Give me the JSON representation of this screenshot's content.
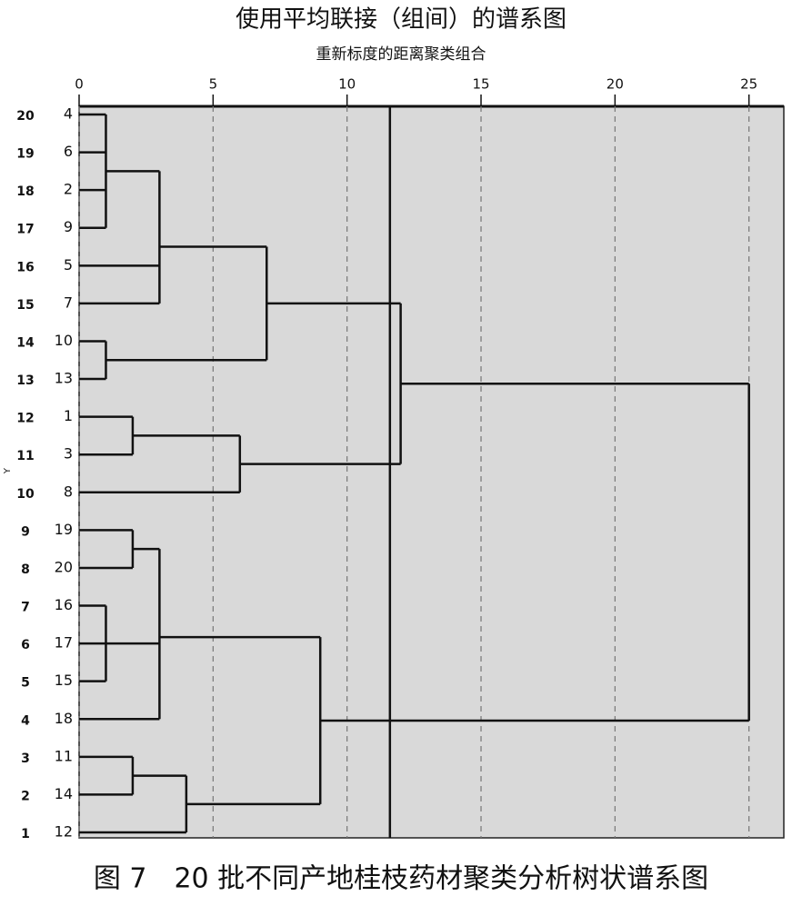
{
  "chart_data": {
    "type": "dendrogram",
    "title": "使用平均联接（组间）的谱系图",
    "subtitle": "重新标度的距离聚类组合",
    "y_label": "Y",
    "caption": "图 7　20 批不同产地桂枝药材聚类分析树状谱系图",
    "xlim": [
      0,
      26.3
    ],
    "xticks": [
      0,
      5,
      10,
      15,
      20,
      25
    ],
    "grid": true,
    "cut_line": 11.6,
    "tree": {
      "height": 25,
      "children": [
        {
          "height": 12,
          "children": [
            {
              "height": 7,
              "children": [
                {
                  "height": 3,
                  "children": [
                    {
                      "height": 1,
                      "children": [
                        {
                          "row": 20,
                          "label": 4
                        },
                        {
                          "row": 19,
                          "label": 6
                        },
                        {
                          "row": 18,
                          "label": 2
                        },
                        {
                          "row": 17,
                          "label": 9
                        }
                      ]
                    },
                    {
                      "row": 16,
                      "label": 5
                    },
                    {
                      "row": 15,
                      "label": 7
                    }
                  ]
                },
                {
                  "height": 1,
                  "children": [
                    {
                      "row": 14,
                      "label": 10
                    },
                    {
                      "row": 13,
                      "label": 13
                    }
                  ]
                }
              ]
            },
            {
              "height": 6,
              "children": [
                {
                  "height": 2,
                  "children": [
                    {
                      "row": 12,
                      "label": 1
                    },
                    {
                      "row": 11,
                      "label": 3
                    }
                  ]
                },
                {
                  "row": 10,
                  "label": 8
                }
              ]
            }
          ]
        },
        {
          "height": 9,
          "children": [
            {
              "height": 3,
              "children": [
                {
                  "height": 2,
                  "children": [
                    {
                      "row": 9,
                      "label": 19
                    },
                    {
                      "row": 8,
                      "label": 20
                    }
                  ]
                },
                {
                  "height": 1,
                  "children": [
                    {
                      "row": 7,
                      "label": 16
                    },
                    {
                      "row": 6,
                      "label": 17
                    },
                    {
                      "row": 5,
                      "label": 15
                    }
                  ]
                },
                {
                  "row": 4,
                  "label": 18
                }
              ]
            },
            {
              "height": 4,
              "children": [
                {
                  "height": 2,
                  "children": [
                    {
                      "row": 3,
                      "label": 11
                    },
                    {
                      "row": 2,
                      "label": 14
                    }
                  ]
                },
                {
                  "row": 1,
                  "label": 12
                }
              ]
            }
          ]
        }
      ]
    }
  }
}
